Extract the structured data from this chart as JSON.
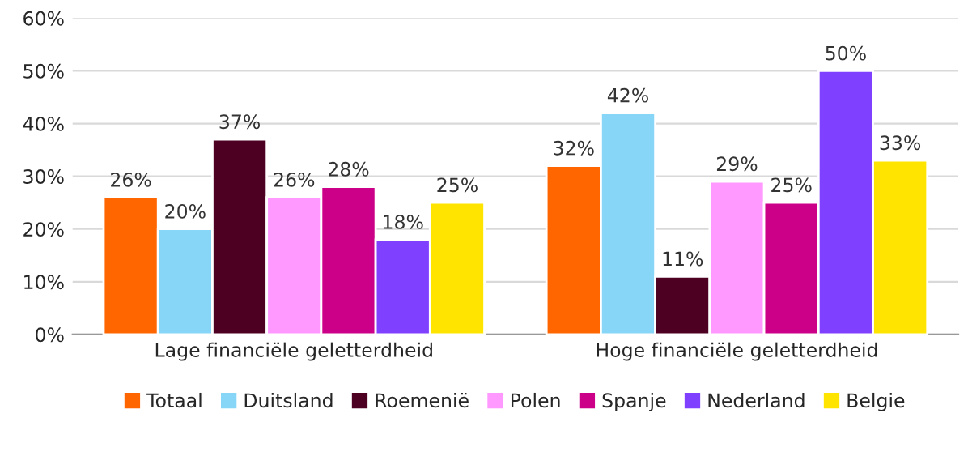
{
  "chart_data": {
    "type": "bar",
    "categories": [
      "Lage financiële geletterdheid",
      "Hoge financiële geletterdheid"
    ],
    "series": [
      {
        "name": "Totaal",
        "color": "#ff6600",
        "values": [
          26,
          32
        ],
        "value_labels": [
          "26%",
          "32%"
        ]
      },
      {
        "name": "Duitsland",
        "color": "#87d5f7",
        "values": [
          20,
          42
        ],
        "value_labels": [
          "20%",
          "42%"
        ]
      },
      {
        "name": "Roemenië",
        "color": "#4d0022",
        "values": [
          37,
          11
        ],
        "value_labels": [
          "37%",
          "11%"
        ]
      },
      {
        "name": "Polen",
        "color": "#ff99ff",
        "values": [
          26,
          29
        ],
        "value_labels": [
          "26%",
          "29%"
        ]
      },
      {
        "name": "Spanje",
        "color": "#cc0088",
        "values": [
          28,
          25
        ],
        "value_labels": [
          "28%",
          "25%"
        ]
      },
      {
        "name": "Nederland",
        "color": "#8040ff",
        "values": [
          18,
          50
        ],
        "value_labels": [
          "18%",
          "50%"
        ]
      },
      {
        "name": "Belgie",
        "color": "#ffe400",
        "values": [
          25,
          33
        ],
        "value_labels": [
          "25%",
          "33%"
        ]
      }
    ],
    "ylim": [
      0,
      60
    ],
    "yticks": [
      {
        "value": 0,
        "label": "0%"
      },
      {
        "value": 10,
        "label": "10%"
      },
      {
        "value": 20,
        "label": "20%"
      },
      {
        "value": 30,
        "label": "30%"
      },
      {
        "value": 40,
        "label": "40%"
      },
      {
        "value": 50,
        "label": "50%"
      },
      {
        "value": 60,
        "label": "60%"
      }
    ],
    "grid": "y",
    "legend": "bottom"
  }
}
